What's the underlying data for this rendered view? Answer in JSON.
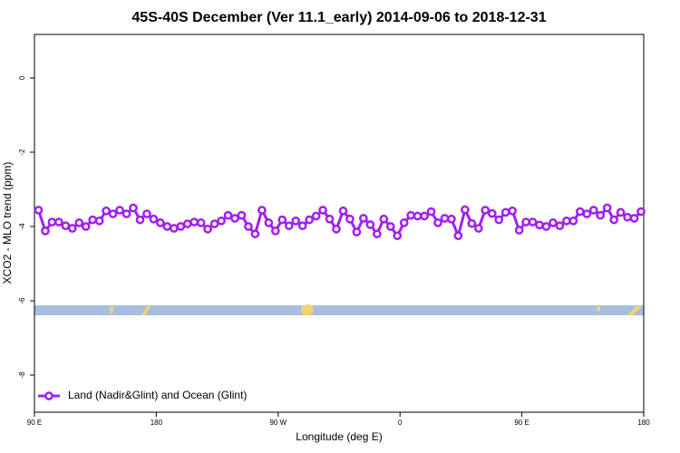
{
  "chart_data": {
    "type": "line",
    "title": "45S-40S December (Ver 11.1_early)   2014-09-06 to 2018-12-31",
    "x_label": "Longitude (deg E)",
    "y_label": "XCO2 - MLO trend (ppm)",
    "xlim": [
      90,
      540
    ],
    "xticks": [
      {
        "value": 90,
        "label": "90 E"
      },
      {
        "value": 180,
        "label": "180"
      },
      {
        "value": 270,
        "label": "90 W"
      },
      {
        "value": 360,
        "label": "0"
      },
      {
        "value": 450,
        "label": "90 E"
      },
      {
        "value": 540,
        "label": "180"
      }
    ],
    "ylim": [
      -9,
      1.17
    ],
    "yticks": [
      0,
      -2,
      -4,
      -6,
      -8
    ],
    "grid": false,
    "legend": "bottom-left",
    "x": [
      93,
      98,
      103,
      108,
      113,
      118,
      123,
      128,
      133,
      138,
      143,
      148,
      153,
      158,
      163,
      168,
      173,
      178,
      183,
      188,
      193,
      198,
      203,
      208,
      213,
      218,
      223,
      228,
      233,
      238,
      243,
      248,
      253,
      258,
      263,
      268,
      273,
      278,
      283,
      288,
      293,
      298,
      303,
      308,
      313,
      318,
      323,
      328,
      333,
      338,
      343,
      348,
      353,
      358,
      363,
      368,
      373,
      378,
      383,
      388,
      393,
      398,
      403,
      408,
      413,
      418,
      423,
      428,
      433,
      438,
      443,
      448,
      453,
      458,
      463,
      468,
      473,
      478,
      483,
      488,
      493,
      498,
      503,
      508,
      513,
      518,
      523,
      528,
      533,
      538
    ],
    "series": [
      {
        "name": "Land (Nadir&Glint) and Ocean (Glint)",
        "color": "#a020f0",
        "values": [
          -3.56,
          -4.12,
          -3.88,
          -3.88,
          -3.98,
          -4.05,
          -3.9,
          -4.0,
          -3.82,
          -3.85,
          -3.58,
          -3.66,
          -3.56,
          -3.66,
          -3.5,
          -3.82,
          -3.66,
          -3.8,
          -3.9,
          -4.0,
          -4.05,
          -4.0,
          -3.93,
          -3.88,
          -3.9,
          -4.07,
          -3.93,
          -3.85,
          -3.7,
          -3.78,
          -3.7,
          -4.0,
          -4.2,
          -3.56,
          -3.9,
          -4.12,
          -3.82,
          -3.98,
          -3.85,
          -3.98,
          -3.82,
          -3.72,
          -3.56,
          -3.8,
          -4.07,
          -3.58,
          -3.8,
          -4.15,
          -3.78,
          -3.95,
          -4.2,
          -3.8,
          -4.0,
          -4.25,
          -3.9,
          -3.7,
          -3.72,
          -3.72,
          -3.6,
          -3.9,
          -3.78,
          -3.8,
          -4.25,
          -3.55,
          -3.92,
          -4.05,
          -3.56,
          -3.65,
          -3.82,
          -3.62,
          -3.58,
          -4.1,
          -3.88,
          -3.88,
          -3.96,
          -4.0,
          -3.9,
          -3.98,
          -3.85,
          -3.85,
          -3.6,
          -3.66,
          -3.56,
          -3.7,
          -3.5,
          -3.82,
          -3.62,
          -3.75,
          -3.78,
          -3.6
        ]
      }
    ]
  }
}
